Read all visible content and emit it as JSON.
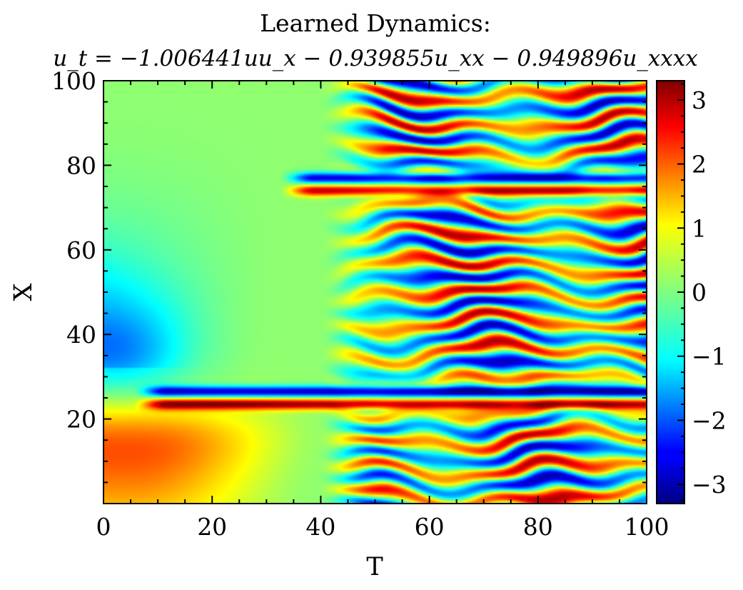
{
  "chart_data": {
    "type": "heatmap",
    "title": "Learned Dynamics:",
    "subtitle": "u_t = −1.006441uu_x − 0.939855u_xx − 0.949896u_xxxx",
    "xlabel": "T",
    "ylabel": "X",
    "xlim": [
      0,
      100
    ],
    "ylim": [
      0,
      100
    ],
    "x_ticks": [
      0,
      20,
      40,
      60,
      80,
      100
    ],
    "y_ticks": [
      20,
      40,
      60,
      80,
      100
    ],
    "x_tick_labels": [
      "0",
      "20",
      "40",
      "60",
      "80",
      "100"
    ],
    "y_tick_labels": [
      "20",
      "40",
      "60",
      "80",
      "100"
    ],
    "colorbar": {
      "colormap": "jet",
      "range": [
        -3.3,
        3.3
      ],
      "ticks": [
        3,
        2,
        1,
        0,
        -1,
        -2,
        -3
      ],
      "tick_labels": [
        "3",
        "2",
        "1",
        "0",
        "−1",
        "−2",
        "−3"
      ]
    },
    "features": {
      "transition_time": 45,
      "persistent_bands": [
        {
          "x": 26.5,
          "value": -3.0,
          "from_t": 8
        },
        {
          "x": 23.5,
          "value": 3.0,
          "from_t": 8
        },
        {
          "x": 77.0,
          "value": -2.8,
          "from_t": 35
        },
        {
          "x": 74.0,
          "value": 2.8,
          "from_t": 35
        }
      ],
      "early_state": [
        {
          "x": 5,
          "value": 1.4
        },
        {
          "x": 15,
          "value": 1.2
        },
        {
          "x": 35,
          "value": -1.0
        },
        {
          "x": 50,
          "value": -0.5
        },
        {
          "x": 80,
          "value": 0.1
        }
      ]
    },
    "colors": {
      "jet": [
        "#00007f",
        "#0000ff",
        "#007fff",
        "#00ffff",
        "#7fff7f",
        "#ffff00",
        "#ff7f00",
        "#ff0000",
        "#7f0000"
      ]
    }
  }
}
